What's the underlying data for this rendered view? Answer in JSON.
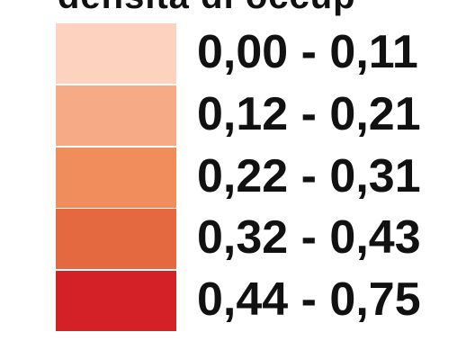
{
  "legend": {
    "title": "densità di occup",
    "classes": [
      {
        "label": "0,00 - 0,11",
        "color": "#fdd2be"
      },
      {
        "label": "0,12 - 0,21",
        "color": "#f6aa85"
      },
      {
        "label": "0,22 - 0,31",
        "color": "#f18c5c"
      },
      {
        "label": "0,32 - 0,43",
        "color": "#e46840"
      },
      {
        "label": "0,44 - 0,75",
        "color": "#d42128"
      }
    ]
  }
}
